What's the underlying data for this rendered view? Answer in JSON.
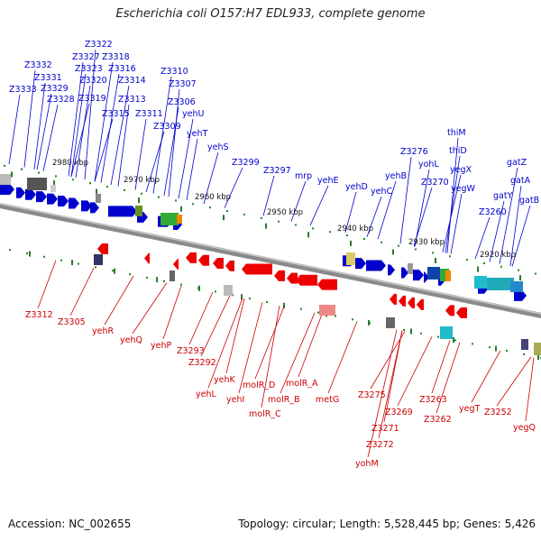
{
  "title": "Escherichia coli O157:H7 EDL933, complete genome",
  "footer": {
    "accession": "Accession: NC_002655",
    "summary": "Topology: circular; Length: 5,528,445 bp; Genes: 5,426"
  },
  "colors": {
    "plus_strand": "#0000cc",
    "minus_strand": "#cc0000",
    "backbone": "#8a8a8a"
  },
  "kbp_labels": [
    "2980 kbp",
    "2970 kbp",
    "2960 kbp",
    "2950 kbp",
    "2940 kbp",
    "2930 kbp",
    "2920 kbp"
  ],
  "top_labels": [
    "Z3322",
    "Z3327",
    "Z3318",
    "Z3332",
    "Z3323",
    "Z3316",
    "Z3331",
    "Z3320",
    "Z3314",
    "Z3333",
    "Z3329",
    "Z3310",
    "Z3307",
    "Z3328",
    "Z3319",
    "Z3313",
    "Z3306",
    "Z3315",
    "Z3311",
    "yehU",
    "Z3309",
    "yehT",
    "yehS",
    "Z3299",
    "Z3297",
    "mrp",
    "yehE",
    "yehD",
    "yehC",
    "yehB",
    "Z3276",
    "yohL",
    "Z3270",
    "thiM",
    "thiD",
    "yegX",
    "yegW",
    "Z3260",
    "gatZ",
    "gatA",
    "gatY",
    "gatB"
  ],
  "bottom_labels": [
    "Z3312",
    "Z3305",
    "yehR",
    "yehQ",
    "yehP",
    "Z3293",
    "Z3292",
    "yehL",
    "yehK",
    "yehI",
    "molR_D",
    "molR_B",
    "molR_C",
    "molR_A",
    "metG",
    "Z3275",
    "Z3271",
    "Z3272",
    "yohM",
    "Z3269",
    "Z3263",
    "Z3262",
    "yegT",
    "Z3252",
    "yegQ"
  ]
}
